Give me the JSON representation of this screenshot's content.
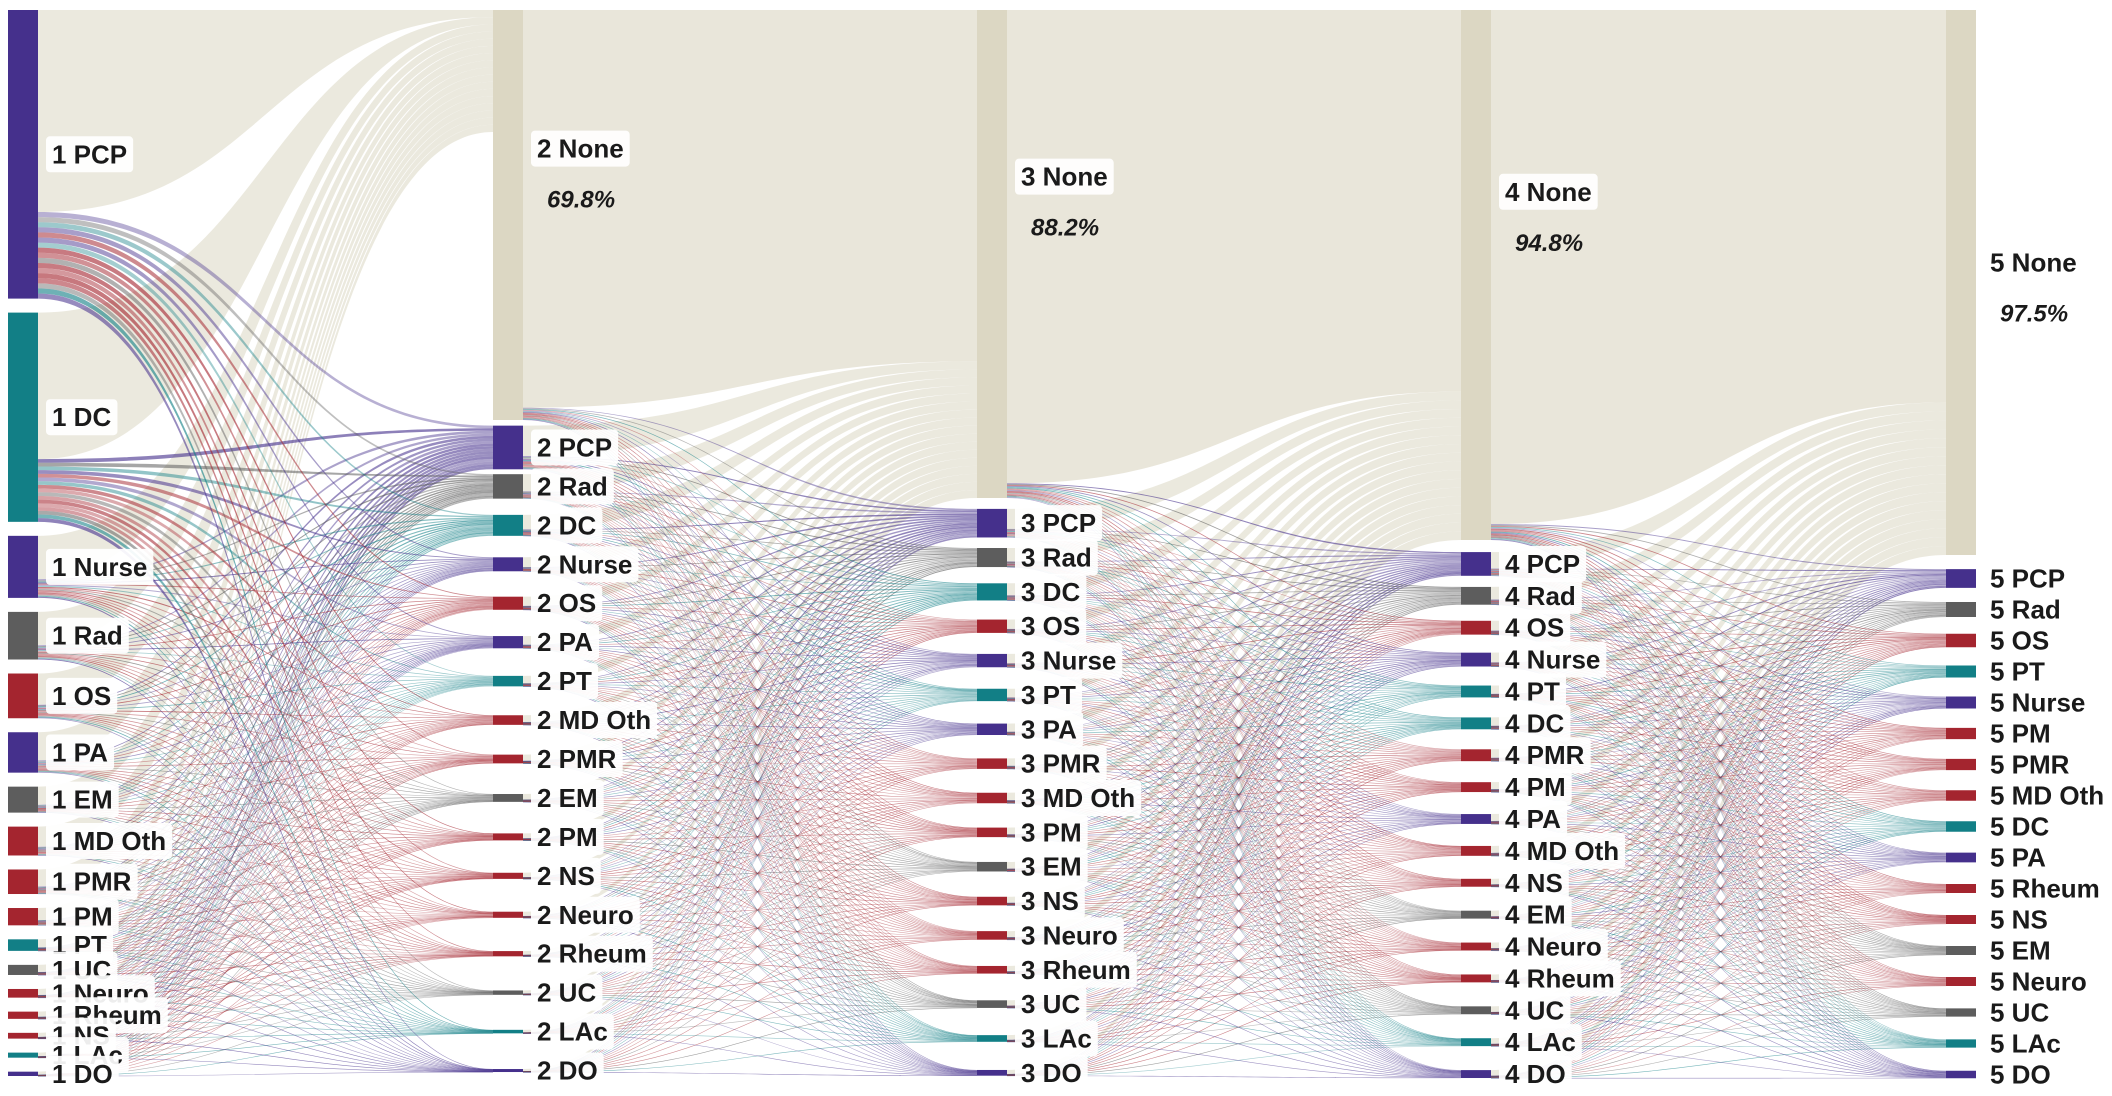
{
  "colors": {
    "none": "#dcd7c3",
    "none_flow": "#e8e5d8",
    "purple": "#45308c",
    "teal": "#127f86",
    "gray": "#5d5d5d",
    "red": "#a4252f"
  },
  "columns": [
    {
      "nodes": [
        {
          "label": "1 PCP",
          "color": "purple",
          "value": 20
        },
        {
          "label": "1 DC",
          "color": "teal",
          "value": 14.5
        },
        {
          "label": "1 Nurse",
          "color": "purple",
          "value": 4.3
        },
        {
          "label": "1 Rad",
          "color": "gray",
          "value": 3.3
        },
        {
          "label": "1 OS",
          "color": "red",
          "value": 3.1
        },
        {
          "label": "1 PA",
          "color": "purple",
          "value": 2.8
        },
        {
          "label": "1 EM",
          "color": "gray",
          "value": 1.8
        },
        {
          "label": "1 MD Oth",
          "color": "red",
          "value": 2
        },
        {
          "label": "1 PMR",
          "color": "red",
          "value": 1.7
        },
        {
          "label": "1 PM",
          "color": "red",
          "value": 1.2
        },
        {
          "label": "1 PT",
          "color": "teal",
          "value": 0.8
        },
        {
          "label": "1 UC",
          "color": "gray",
          "value": 0.7
        },
        {
          "label": "1 Neuro",
          "color": "red",
          "value": 0.6
        },
        {
          "label": "1 Rheum",
          "color": "red",
          "value": 0.5
        },
        {
          "label": "1 NS",
          "color": "red",
          "value": 0.4
        },
        {
          "label": "1 LAc",
          "color": "teal",
          "value": 0.35
        },
        {
          "label": "1 DO",
          "color": "purple",
          "value": 0.3
        }
      ]
    },
    {
      "nodes": [
        {
          "label": "2 None",
          "color": "none",
          "value": 69.8,
          "pct": "69.8%"
        },
        {
          "label": "2 PCP",
          "color": "purple",
          "value": 5
        },
        {
          "label": "2 Rad",
          "color": "gray",
          "value": 2.8
        },
        {
          "label": "2 DC",
          "color": "teal",
          "value": 2.4
        },
        {
          "label": "2 Nurse",
          "color": "purple",
          "value": 1.6
        },
        {
          "label": "2 OS",
          "color": "red",
          "value": 1.5
        },
        {
          "label": "2 PA",
          "color": "purple",
          "value": 1.4
        },
        {
          "label": "2 PT",
          "color": "teal",
          "value": 1.2
        },
        {
          "label": "2 MD Oth",
          "color": "red",
          "value": 1.1
        },
        {
          "label": "2 PMR",
          "color": "red",
          "value": 1
        },
        {
          "label": "2 EM",
          "color": "gray",
          "value": 0.9
        },
        {
          "label": "2 PM",
          "color": "red",
          "value": 0.8
        },
        {
          "label": "2 NS",
          "color": "red",
          "value": 0.7
        },
        {
          "label": "2 Neuro",
          "color": "red",
          "value": 0.7
        },
        {
          "label": "2 Rheum",
          "color": "red",
          "value": 0.6
        },
        {
          "label": "2 UC",
          "color": "gray",
          "value": 0.5
        },
        {
          "label": "2 LAc",
          "color": "teal",
          "value": 0.4
        },
        {
          "label": "2 DO",
          "color": "purple",
          "value": 0.3
        }
      ]
    },
    {
      "nodes": [
        {
          "label": "3 None",
          "color": "none",
          "value": 88.2,
          "pct": "88.2%"
        },
        {
          "label": "3 PCP",
          "color": "purple",
          "value": 1.5
        },
        {
          "label": "3 Rad",
          "color": "gray",
          "value": 1
        },
        {
          "label": "3 DC",
          "color": "teal",
          "value": 0.9
        },
        {
          "label": "3 OS",
          "color": "red",
          "value": 0.7
        },
        {
          "label": "3 Nurse",
          "color": "purple",
          "value": 0.7
        },
        {
          "label": "3 PT",
          "color": "teal",
          "value": 0.65
        },
        {
          "label": "3 PA",
          "color": "purple",
          "value": 0.6
        },
        {
          "label": "3 PMR",
          "color": "red",
          "value": 0.55
        },
        {
          "label": "3 MD Oth",
          "color": "red",
          "value": 0.55
        },
        {
          "label": "3 PM",
          "color": "red",
          "value": 0.5
        },
        {
          "label": "3 EM",
          "color": "gray",
          "value": 0.5
        },
        {
          "label": "3 NS",
          "color": "red",
          "value": 0.45
        },
        {
          "label": "3 Neuro",
          "color": "red",
          "value": 0.45
        },
        {
          "label": "3 Rheum",
          "color": "red",
          "value": 0.4
        },
        {
          "label": "3 UC",
          "color": "gray",
          "value": 0.4
        },
        {
          "label": "3 LAc",
          "color": "teal",
          "value": 0.35
        },
        {
          "label": "3 DO",
          "color": "purple",
          "value": 0.3
        }
      ]
    },
    {
      "nodes": [
        {
          "label": "4 None",
          "color": "none",
          "value": 94.8,
          "pct": "94.8%"
        },
        {
          "label": "4 PCP",
          "color": "purple",
          "value": 0.6
        },
        {
          "label": "4 Rad",
          "color": "gray",
          "value": 0.45
        },
        {
          "label": "4 OS",
          "color": "red",
          "value": 0.35
        },
        {
          "label": "4 Nurse",
          "color": "purple",
          "value": 0.35
        },
        {
          "label": "4 PT",
          "color": "teal",
          "value": 0.3
        },
        {
          "label": "4 DC",
          "color": "teal",
          "value": 0.3
        },
        {
          "label": "4 PMR",
          "color": "red",
          "value": 0.3
        },
        {
          "label": "4 PM",
          "color": "red",
          "value": 0.25
        },
        {
          "label": "4 PA",
          "color": "purple",
          "value": 0.25
        },
        {
          "label": "4 MD Oth",
          "color": "red",
          "value": 0.25
        },
        {
          "label": "4 NS",
          "color": "red",
          "value": 0.2
        },
        {
          "label": "4 EM",
          "color": "gray",
          "value": 0.2
        },
        {
          "label": "4 Neuro",
          "color": "red",
          "value": 0.2
        },
        {
          "label": "4 Rheum",
          "color": "red",
          "value": 0.2
        },
        {
          "label": "4 UC",
          "color": "gray",
          "value": 0.2
        },
        {
          "label": "4 LAc",
          "color": "teal",
          "value": 0.2
        },
        {
          "label": "4 DO",
          "color": "purple",
          "value": 0.2
        }
      ]
    },
    {
      "nodes": [
        {
          "label": "5 None",
          "color": "none",
          "value": 97.5,
          "pct": "97.5%"
        },
        {
          "label": "5 PCP",
          "color": "purple",
          "value": 0.25
        },
        {
          "label": "5 Rad",
          "color": "gray",
          "value": 0.2
        },
        {
          "label": "5 OS",
          "color": "red",
          "value": 0.18
        },
        {
          "label": "5 PT",
          "color": "teal",
          "value": 0.16
        },
        {
          "label": "5 Nurse",
          "color": "purple",
          "value": 0.16
        },
        {
          "label": "5 PM",
          "color": "red",
          "value": 0.15
        },
        {
          "label": "5 PMR",
          "color": "red",
          "value": 0.15
        },
        {
          "label": "5 MD Oth",
          "color": "red",
          "value": 0.14
        },
        {
          "label": "5 DC",
          "color": "teal",
          "value": 0.14
        },
        {
          "label": "5 PA",
          "color": "purple",
          "value": 0.13
        },
        {
          "label": "5 Rheum",
          "color": "red",
          "value": 0.12
        },
        {
          "label": "5 NS",
          "color": "red",
          "value": 0.12
        },
        {
          "label": "5 EM",
          "color": "gray",
          "value": 0.12
        },
        {
          "label": "5 Neuro",
          "color": "red",
          "value": 0.12
        },
        {
          "label": "5 UC",
          "color": "gray",
          "value": 0.11
        },
        {
          "label": "5 LAc",
          "color": "teal",
          "value": 0.11
        },
        {
          "label": "5 DO",
          "color": "purple",
          "value": 0.1
        }
      ]
    }
  ]
}
